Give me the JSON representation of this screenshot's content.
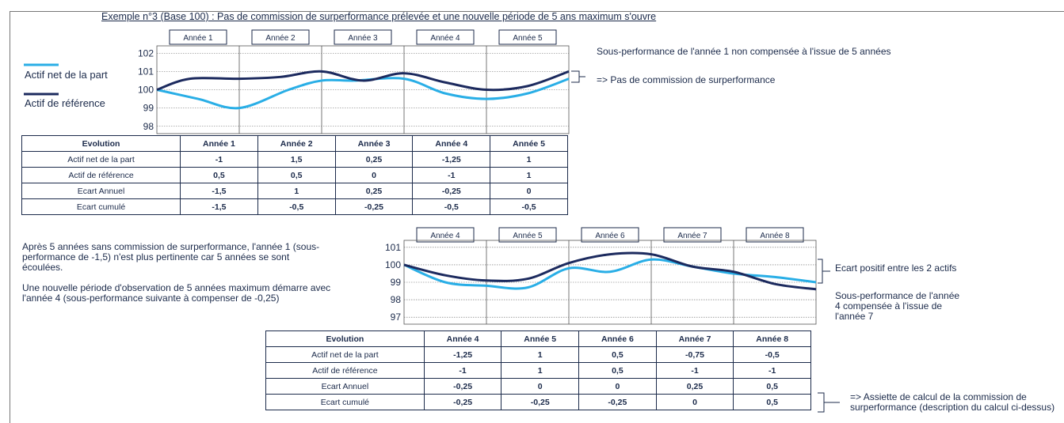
{
  "title": "Exemple n°3 (Base 100) : Pas de commission de surperformance prélevée et une nouvelle période de 5 ans maximum s'ouvre",
  "legend": {
    "net": "Actif net de la part",
    "ref": "Actif de référence",
    "net_color": "#29aee6",
    "ref_color": "#1c2a5e"
  },
  "chart_data": [
    {
      "type": "line",
      "year_labels": [
        "Année 1",
        "Année 2",
        "Année 3",
        "Année 4",
        "Année 5"
      ],
      "y_ticks": [
        "102",
        "101",
        "100",
        "99",
        "98"
      ],
      "ylim": [
        97.6,
        102.4
      ],
      "grid": true,
      "series": [
        {
          "name": "Actif net de la part",
          "color": "#29aee6",
          "points": [
            [
              0,
              100
            ],
            [
              0.5,
              99.5
            ],
            [
              1,
              99
            ],
            [
              1.6,
              100
            ],
            [
              2,
              100.5
            ],
            [
              2.4,
              100.5
            ],
            [
              3,
              100.6
            ],
            [
              3.5,
              99.8
            ],
            [
              4,
              99.5
            ],
            [
              4.5,
              99.8
            ],
            [
              5,
              100.6
            ]
          ]
        },
        {
          "name": "Actif de référence",
          "color": "#1c2a5e",
          "points": [
            [
              0,
              100
            ],
            [
              0.4,
              100.6
            ],
            [
              1,
              100.6
            ],
            [
              1.5,
              100.7
            ],
            [
              2,
              101
            ],
            [
              2.5,
              100.5
            ],
            [
              3,
              100.9
            ],
            [
              3.5,
              100.4
            ],
            [
              4,
              100
            ],
            [
              4.5,
              100.2
            ],
            [
              5,
              101
            ]
          ]
        }
      ],
      "annotations": [
        "Sous-performance de l'année 1 non compensée à l'issue de 5 années",
        "=> Pas de commission de surperformance"
      ]
    },
    {
      "type": "line",
      "year_labels": [
        "Année 4",
        "Année 5",
        "Année 6",
        "Année 7",
        "Année 8"
      ],
      "y_ticks": [
        "101",
        "100",
        "99",
        "98",
        "97"
      ],
      "ylim": [
        96.6,
        101.4
      ],
      "grid": true,
      "series": [
        {
          "name": "Actif net de la part",
          "color": "#29aee6",
          "points": [
            [
              0,
              100
            ],
            [
              0.5,
              99
            ],
            [
              1,
              98.8
            ],
            [
              1.5,
              98.7
            ],
            [
              2,
              99.8
            ],
            [
              2.5,
              99.6
            ],
            [
              3,
              100.3
            ],
            [
              3.5,
              99.9
            ],
            [
              4,
              99.5
            ],
            [
              4.5,
              99.3
            ],
            [
              5,
              99
            ]
          ]
        },
        {
          "name": "Actif de référence",
          "color": "#1c2a5e",
          "points": [
            [
              0,
              100
            ],
            [
              0.5,
              99.4
            ],
            [
              1,
              99.1
            ],
            [
              1.5,
              99.2
            ],
            [
              2,
              100.1
            ],
            [
              2.5,
              100.6
            ],
            [
              3,
              100.6
            ],
            [
              3.5,
              99.9
            ],
            [
              4,
              99.6
            ],
            [
              4.5,
              98.9
            ],
            [
              5,
              98.6
            ]
          ]
        }
      ],
      "annotations": [
        "Ecart positif entre les 2 actifs",
        "Sous-performance de l'année 4 compensée à l'issue de l'année 7"
      ]
    },
    {
      "type": "table",
      "header": [
        "Evolution",
        "Année 1",
        "Année 2",
        "Année 3",
        "Année 4",
        "Année 5"
      ],
      "rows": [
        [
          "Actif net de la part",
          "-1",
          "1,5",
          "0,25",
          "-1,25",
          "1"
        ],
        [
          "Actif de référence",
          "0,5",
          "0,5",
          "0",
          "-1",
          "1"
        ],
        [
          "Ecart Annuel",
          "-1,5",
          "1",
          "0,25",
          "-0,25",
          "0"
        ],
        [
          "Ecart cumulé",
          "-1,5",
          "-0,5",
          "-0,25",
          "-0,5",
          "-0,5"
        ]
      ]
    },
    {
      "type": "table",
      "header": [
        "Evolution",
        "Année 4",
        "Année 5",
        "Année 6",
        "Année 7",
        "Année 8"
      ],
      "rows": [
        [
          "Actif net de la part",
          "-1,25",
          "1",
          "0,5",
          "-0,75",
          "-0,5"
        ],
        [
          "Actif de référence",
          "-1",
          "1",
          "0,5",
          "-1",
          "-1"
        ],
        [
          "Ecart Annuel",
          "-0,25",
          "0",
          "0",
          "0,25",
          "0,5"
        ],
        [
          "Ecart cumulé",
          "-0,25",
          "-0,25",
          "-0,25",
          "0",
          "0,5"
        ]
      ]
    }
  ],
  "notes": {
    "top_right_1": "Sous-performance de l'année 1 non compensée à l'issue de 5 années",
    "top_right_2": "=> Pas de commission de surperformance",
    "middle_left_1": "Après 5 années sans commission de surperformance, l'année 1 (sous-performance de -1,5)  n'est plus pertinente car 5 années se sont écoulées.",
    "middle_left_2": "Une nouvelle période d'observation de 5 années maximum démarre avec l'année 4 (sous-performance suivante à compenser de -0,25)",
    "bottom_right_1": "Ecart positif entre les 2 actifs",
    "bottom_right_2": "Sous-performance de l'année 4 compensée à l'issue de l'année 7",
    "bottom_right_3": "=> Assiette de calcul de la commission de surperformance (description du calcul ci-dessus)"
  }
}
